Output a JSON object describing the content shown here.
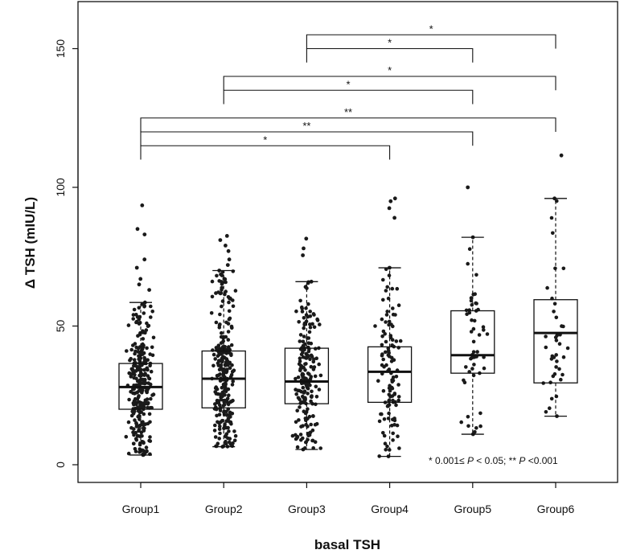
{
  "chart_data": {
    "type": "boxplot",
    "title": "",
    "xlabel": "basal TSH",
    "ylabel": "Δ TSH (mIU/L)",
    "ylim": [
      0,
      160
    ],
    "yticks": [
      0,
      50,
      100,
      150
    ],
    "categories": [
      "Group1",
      "Group2",
      "Group3",
      "Group4",
      "Group5",
      "Group6"
    ],
    "boxes": [
      {
        "name": "Group1",
        "whisker_low": 3.5,
        "q1": 20,
        "median": 28,
        "q3": 36.5,
        "whisker_high": 58.5,
        "n_points": 280,
        "outliers": [
          63,
          65,
          67,
          71,
          74,
          83,
          85,
          93.5
        ]
      },
      {
        "name": "Group2",
        "whisker_low": 6.5,
        "q1": 20.5,
        "median": 31,
        "q3": 41,
        "whisker_high": 70,
        "n_points": 260,
        "outliers": [
          72,
          74,
          77,
          79,
          81,
          82.5
        ]
      },
      {
        "name": "Group3",
        "whisker_low": 5.5,
        "q1": 22,
        "median": 30,
        "q3": 42,
        "whisker_high": 66,
        "n_points": 190,
        "outliers": [
          75.5,
          78,
          81.5
        ]
      },
      {
        "name": "Group4",
        "whisker_low": 3,
        "q1": 22.5,
        "median": 33.5,
        "q3": 42.5,
        "whisker_high": 71,
        "n_points": 110,
        "outliers": [
          89,
          92.5,
          95,
          96
        ]
      },
      {
        "name": "Group5",
        "whisker_low": 11,
        "q1": 33,
        "median": 39.5,
        "q3": 55.5,
        "whisker_high": 82,
        "n_points": 50,
        "outliers": [
          100
        ]
      },
      {
        "name": "Group6",
        "whisker_low": 17.5,
        "q1": 29.5,
        "median": 47.5,
        "q3": 59.5,
        "whisker_high": 96,
        "n_points": 38,
        "outliers": [
          111.5
        ]
      }
    ],
    "comparisons": [
      {
        "from": "Group3",
        "to": "Group6",
        "y": 155,
        "label": "*"
      },
      {
        "from": "Group3",
        "to": "Group5",
        "y": 150,
        "label": "*"
      },
      {
        "from": "Group2",
        "to": "Group6",
        "y": 140,
        "label": "*"
      },
      {
        "from": "Group2",
        "to": "Group5",
        "y": 135,
        "label": "*"
      },
      {
        "from": "Group1",
        "to": "Group6",
        "y": 125,
        "label": "**"
      },
      {
        "from": "Group1",
        "to": "Group5",
        "y": 120,
        "label": "**"
      },
      {
        "from": "Group1",
        "to": "Group4",
        "y": 115,
        "label": "*"
      }
    ],
    "annotation": {
      "prefix": "* 0.001≤ ",
      "p1": "P",
      "mid": " < 0.05; ** ",
      "p2": "P",
      "suffix": " <0.001"
    },
    "colors": {
      "ink": "#111111",
      "background": "#ffffff",
      "points": "#1a1a1a"
    }
  }
}
